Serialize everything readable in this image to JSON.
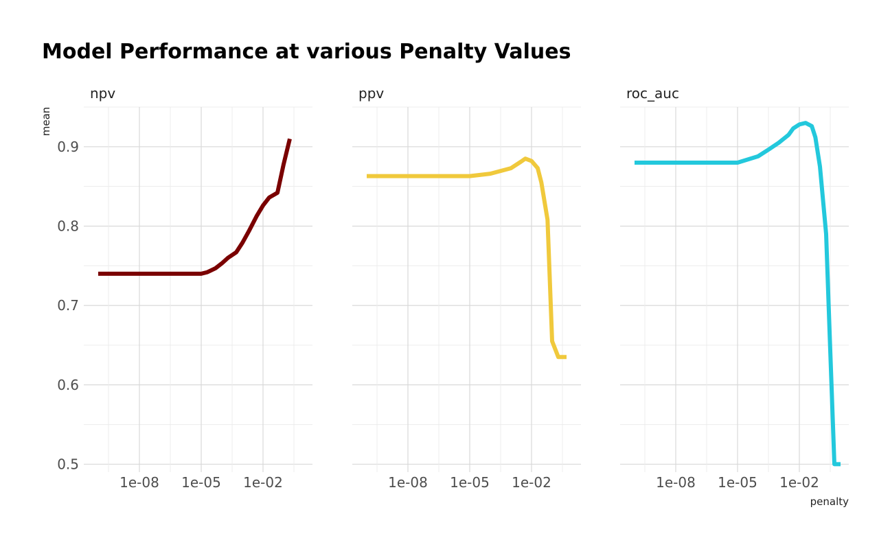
{
  "chart_data": {
    "type": "line",
    "title": "Model Performance at various Penalty Values",
    "xlabel": "penalty",
    "ylabel": "mean",
    "x_scale": "log10",
    "x_ticks": [
      "1e-08",
      "1e-05",
      "1e-02"
    ],
    "y_ticks": [
      "0.5",
      "0.6",
      "0.7",
      "0.8",
      "0.9"
    ],
    "ylim": [
      0.49,
      0.95
    ],
    "grid": true,
    "legend": "none",
    "panels": [
      {
        "name": "npv",
        "color": "#7a0000",
        "x": [
          1e-10,
          1e-09,
          1e-08,
          1e-07,
          1e-06,
          1e-05,
          2e-05,
          5e-05,
          0.0001,
          0.0002,
          0.0005,
          0.001,
          0.002,
          0.005,
          0.01,
          0.02,
          0.05,
          0.1,
          0.2
        ],
        "y": [
          0.74,
          0.74,
          0.74,
          0.74,
          0.74,
          0.74,
          0.742,
          0.747,
          0.753,
          0.76,
          0.767,
          0.779,
          0.793,
          0.813,
          0.826,
          0.836,
          0.842,
          0.878,
          0.91
        ]
      },
      {
        "name": "ppv",
        "color": "#f0c93c",
        "x": [
          1e-10,
          1e-09,
          1e-08,
          1e-07,
          1e-06,
          1e-05,
          0.0001,
          0.001,
          0.003,
          0.005,
          0.01,
          0.02,
          0.03,
          0.06,
          0.1,
          0.2,
          0.5
        ],
        "y": [
          0.863,
          0.863,
          0.863,
          0.863,
          0.863,
          0.863,
          0.866,
          0.873,
          0.881,
          0.885,
          0.882,
          0.873,
          0.855,
          0.808,
          0.655,
          0.635,
          0.635
        ]
      },
      {
        "name": "roc_auc",
        "color": "#23c8dc",
        "x": [
          1e-10,
          1e-09,
          1e-08,
          1e-07,
          1e-06,
          1e-05,
          0.0001,
          0.0003,
          0.001,
          0.003,
          0.005,
          0.01,
          0.02,
          0.04,
          0.06,
          0.1,
          0.2,
          0.3,
          0.5,
          1
        ],
        "y": [
          0.88,
          0.88,
          0.88,
          0.88,
          0.88,
          0.88,
          0.888,
          0.896,
          0.905,
          0.915,
          0.923,
          0.928,
          0.93,
          0.926,
          0.912,
          0.875,
          0.79,
          0.66,
          0.5,
          0.5
        ]
      }
    ]
  }
}
